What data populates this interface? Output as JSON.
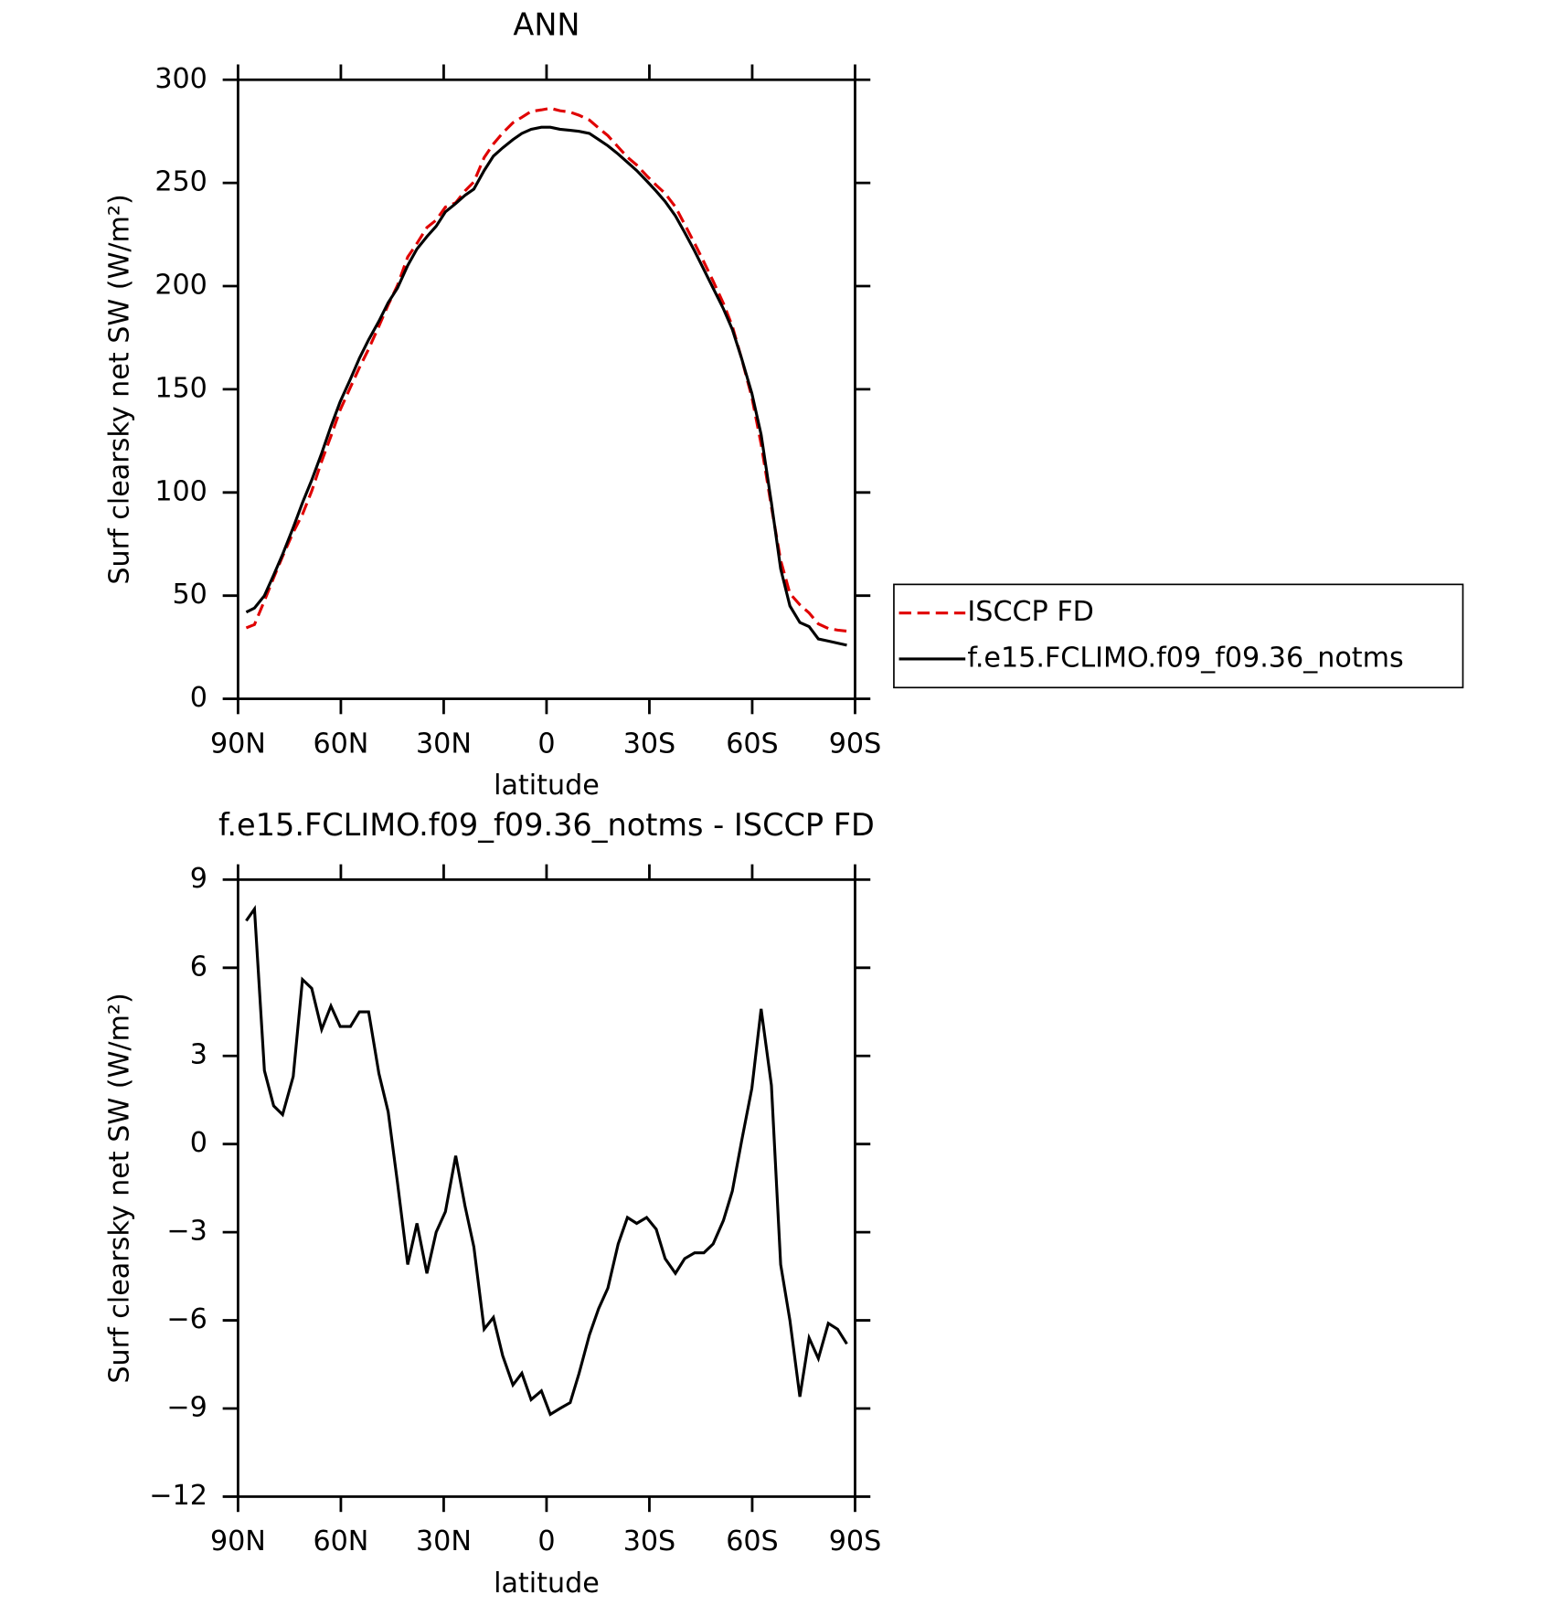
{
  "chart_data": [
    {
      "type": "line",
      "title": "ANN",
      "xlabel": "latitude",
      "ylabel": "Surf clearsky net SW (W/m²)",
      "x": [
        87.6,
        85.2,
        82.3,
        79.6,
        77.0,
        73.9,
        71.2,
        68.5,
        65.6,
        62.9,
        60.2,
        57.2,
        54.6,
        51.9,
        48.9,
        46.2,
        43.5,
        40.5,
        37.8,
        34.9,
        32.2,
        29.5,
        26.5,
        23.8,
        21.2,
        18.2,
        15.5,
        12.8,
        9.8,
        7.2,
        4.5,
        1.5,
        -1.1,
        -3.9,
        -6.9,
        -9.5,
        -12.5,
        -15.2,
        -17.9,
        -20.9,
        -23.6,
        -26.3,
        -29.2,
        -32.0,
        -34.6,
        -37.6,
        -40.3,
        -43.2,
        -45.9,
        -48.6,
        -51.6,
        -54.2,
        -56.9,
        -59.9,
        -62.6,
        -65.6,
        -68.3,
        -71.0,
        -73.9,
        -76.6,
        -79.3,
        -82.2,
        -84.9,
        -87.6
      ],
      "series": [
        {
          "name": "ISCCP FD",
          "color": "#e00000",
          "dash": true,
          "values": [
            34.4,
            36,
            47.5,
            58.7,
            69,
            80.7,
            89.4,
            100.7,
            115.1,
            127.3,
            140,
            151,
            160.5,
            169.5,
            180.6,
            190.9,
            200.3,
            214.1,
            220.7,
            228.4,
            232,
            238.3,
            240.4,
            246.1,
            250.5,
            262.3,
            268.9,
            274.2,
            279.2,
            281.8,
            284.7,
            285.4,
            286.2,
            285,
            284.3,
            282.8,
            280.5,
            276.6,
            272.9,
            267.4,
            262.5,
            258.7,
            253.5,
            248.9,
            244.9,
            238.4,
            229.9,
            220.7,
            211.7,
            202.4,
            191.6,
            180.6,
            164.9,
            146.1,
            123.4,
            93,
            67.1,
            51,
            45.6,
            41.6,
            36.3,
            34.1,
            33.3,
            32.8
          ]
        },
        {
          "name": "f.e15.FCLIMO.f09_f09.36_notms",
          "color": "#000000",
          "dash": false,
          "values": [
            42,
            44,
            50,
            60,
            70,
            83,
            95,
            106,
            119,
            132,
            144,
            155,
            165,
            174,
            183,
            192,
            199,
            210,
            218,
            224,
            229,
            236,
            240,
            244,
            247,
            256,
            263,
            267,
            271,
            274,
            276,
            277,
            277,
            276,
            275.5,
            275,
            274,
            271,
            268,
            264,
            260,
            256,
            251,
            246,
            241,
            234,
            226,
            217,
            208,
            199,
            189,
            179,
            165,
            148,
            128,
            95,
            63,
            45,
            37,
            35,
            29,
            28,
            27,
            26
          ]
        }
      ],
      "xlim": [
        90,
        -90
      ],
      "ylim": [
        0,
        300
      ],
      "xticks": [
        {
          "value": 90,
          "label": "90N"
        },
        {
          "value": 60,
          "label": "60N"
        },
        {
          "value": 30,
          "label": "30N"
        },
        0,
        {
          "value": -30,
          "label": "30S"
        },
        {
          "value": -60,
          "label": "60S"
        },
        {
          "value": -90,
          "label": "90S"
        }
      ],
      "yticks": [
        0,
        50,
        100,
        150,
        200,
        250,
        300
      ],
      "legend": true
    },
    {
      "type": "line",
      "title": "f.e15.FCLIMO.f09_f09.36_notms - ISCCP FD",
      "xlabel": "latitude",
      "ylabel": "Surf clearsky net SW (W/m²)",
      "x": [
        87.6,
        85.2,
        82.3,
        79.6,
        77.0,
        73.9,
        71.2,
        68.5,
        65.6,
        62.9,
        60.2,
        57.2,
        54.6,
        51.9,
        48.9,
        46.2,
        43.5,
        40.5,
        37.8,
        34.9,
        32.2,
        29.5,
        26.5,
        23.8,
        21.2,
        18.2,
        15.5,
        12.8,
        9.8,
        7.2,
        4.5,
        1.5,
        -1.1,
        -3.9,
        -6.9,
        -9.5,
        -12.5,
        -15.2,
        -17.9,
        -20.9,
        -23.6,
        -26.3,
        -29.2,
        -32.0,
        -34.6,
        -37.6,
        -40.3,
        -43.2,
        -45.9,
        -48.6,
        -51.6,
        -54.2,
        -56.9,
        -59.9,
        -62.6,
        -65.6,
        -68.3,
        -71.0,
        -73.9,
        -76.6,
        -79.3,
        -82.2,
        -84.9,
        -87.6
      ],
      "series": [
        {
          "color": "#000000",
          "dash": false,
          "values": [
            7.6,
            8.0,
            2.5,
            1.3,
            1.0,
            2.3,
            5.6,
            5.3,
            3.9,
            4.7,
            4.0,
            4.0,
            4.5,
            4.5,
            2.4,
            1.1,
            -1.3,
            -4.1,
            -2.7,
            -4.4,
            -3.0,
            -2.3,
            -0.4,
            -2.1,
            -3.5,
            -6.3,
            -5.9,
            -7.2,
            -8.2,
            -7.8,
            -8.7,
            -8.4,
            -9.2,
            -9.0,
            -8.8,
            -7.8,
            -6.5,
            -5.6,
            -4.9,
            -3.4,
            -2.5,
            -2.7,
            -2.5,
            -2.9,
            -3.9,
            -4.4,
            -3.9,
            -3.7,
            -3.7,
            -3.4,
            -2.6,
            -1.6,
            0.1,
            1.9,
            4.6,
            2.0,
            -4.1,
            -6.0,
            -8.6,
            -6.6,
            -7.3,
            -6.1,
            -6.3,
            -6.8
          ]
        }
      ],
      "xlim": [
        90,
        -90
      ],
      "ylim": [
        -12,
        9
      ],
      "xticks": [
        {
          "value": 90,
          "label": "90N"
        },
        {
          "value": 60,
          "label": "60N"
        },
        {
          "value": 30,
          "label": "30N"
        },
        0,
        {
          "value": -30,
          "label": "30S"
        },
        {
          "value": -60,
          "label": "60S"
        },
        {
          "value": -90,
          "label": "90S"
        }
      ],
      "yticks": [
        {
          "value": -12,
          "label": "−12"
        },
        {
          "value": -9,
          "label": "−9"
        },
        {
          "value": -6,
          "label": "−6"
        },
        {
          "value": -3,
          "label": "−3"
        },
        0,
        3,
        6,
        9
      ],
      "legend": false
    }
  ]
}
